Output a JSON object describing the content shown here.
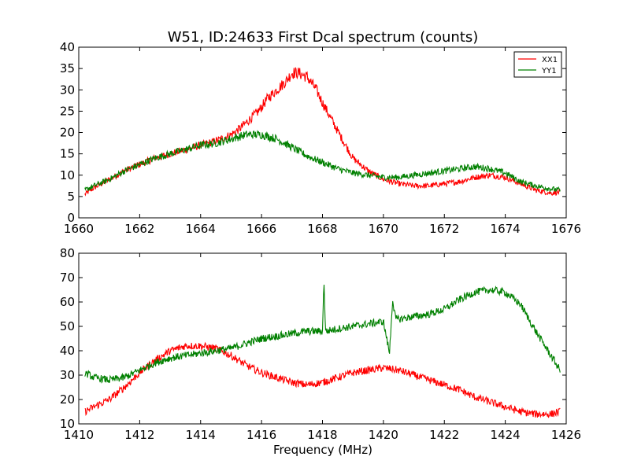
{
  "chart_data": [
    {
      "type": "line",
      "title": "W51, ID:24633 First Dcal spectrum (counts)",
      "xlabel": "",
      "ylabel": "",
      "xlim": [
        1660,
        1676
      ],
      "ylim": [
        0,
        40
      ],
      "xticks": [
        1660,
        1662,
        1664,
        1666,
        1668,
        1670,
        1672,
        1674,
        1676
      ],
      "xtick_labels": [
        "1660",
        "1662",
        "1664",
        "1666",
        "1668",
        "1670",
        "1672",
        "1674",
        "1676"
      ],
      "yticks": [
        0,
        5,
        10,
        15,
        20,
        25,
        30,
        35,
        40
      ],
      "ytick_labels": [
        "0",
        "5",
        "10",
        "15",
        "20",
        "25",
        "30",
        "35",
        "40"
      ],
      "grid": false,
      "legend": "top-right",
      "series": [
        {
          "name": "XX1",
          "color": "#ff0000",
          "x": [
            1660.2,
            1660.5,
            1661.0,
            1661.5,
            1662.0,
            1662.5,
            1663.0,
            1663.5,
            1664.0,
            1664.5,
            1665.0,
            1665.3,
            1665.6,
            1665.9,
            1666.2,
            1666.5,
            1666.8,
            1667.0,
            1667.2,
            1667.5,
            1667.8,
            1668.0,
            1668.3,
            1668.6,
            1669.0,
            1669.5,
            1670.0,
            1670.5,
            1671.0,
            1671.5,
            1672.0,
            1672.5,
            1673.0,
            1673.5,
            1674.0,
            1674.5,
            1675.0,
            1675.5,
            1675.8
          ],
          "values": [
            5.5,
            7,
            9,
            11,
            12.5,
            14,
            15,
            16,
            17,
            18,
            19.5,
            21,
            23,
            25,
            28,
            30,
            32,
            34,
            34,
            33,
            30,
            27,
            23,
            19,
            14,
            11,
            9,
            8,
            7.5,
            7.5,
            8,
            8.5,
            9.5,
            10,
            9.5,
            8,
            6.5,
            5.8,
            6
          ]
        },
        {
          "name": "YY1",
          "color": "#008000",
          "x": [
            1660.2,
            1660.5,
            1661.0,
            1661.5,
            1662.0,
            1662.5,
            1663.0,
            1663.5,
            1664.0,
            1664.5,
            1665.0,
            1665.5,
            1666.0,
            1666.5,
            1667.0,
            1667.5,
            1668.0,
            1668.5,
            1669.0,
            1669.5,
            1670.0,
            1670.5,
            1671.0,
            1671.5,
            1672.0,
            1672.5,
            1673.0,
            1673.5,
            1674.0,
            1674.5,
            1675.0,
            1675.5,
            1675.8
          ],
          "values": [
            6.5,
            7.5,
            9,
            11,
            12.5,
            14,
            15,
            16,
            17,
            17.5,
            18.5,
            19.5,
            19.5,
            18.5,
            16.5,
            14.5,
            13,
            11.5,
            10.5,
            10,
            9.5,
            9.5,
            10,
            10.5,
            11,
            11.5,
            12,
            11.5,
            10.5,
            8.5,
            7.5,
            6.8,
            6.5
          ]
        }
      ]
    },
    {
      "type": "line",
      "title": "",
      "xlabel": "Frequency (MHz)",
      "ylabel": "",
      "xlim": [
        1410,
        1426
      ],
      "ylim": [
        10,
        80
      ],
      "xticks": [
        1410,
        1412,
        1414,
        1416,
        1418,
        1420,
        1422,
        1424,
        1426
      ],
      "xtick_labels": [
        "1410",
        "1412",
        "1414",
        "1416",
        "1418",
        "1420",
        "1422",
        "1424",
        "1426"
      ],
      "yticks": [
        10,
        20,
        30,
        40,
        50,
        60,
        70,
        80
      ],
      "ytick_labels": [
        "10",
        "20",
        "30",
        "40",
        "50",
        "60",
        "70",
        "80"
      ],
      "grid": false,
      "series": [
        {
          "name": "XX1",
          "color": "#ff0000",
          "x": [
            1410.2,
            1410.5,
            1411.0,
            1411.5,
            1412.0,
            1412.5,
            1413.0,
            1413.5,
            1414.0,
            1414.5,
            1415.0,
            1415.5,
            1416.0,
            1416.5,
            1417.0,
            1417.5,
            1418.0,
            1418.5,
            1419.0,
            1419.5,
            1420.0,
            1420.5,
            1421.0,
            1421.5,
            1422.0,
            1422.5,
            1423.0,
            1423.5,
            1424.0,
            1424.5,
            1425.0,
            1425.5,
            1425.8
          ],
          "values": [
            15,
            17,
            20,
            25,
            31,
            36,
            40,
            42,
            42,
            41,
            38,
            34,
            31,
            29,
            27,
            26,
            27,
            29,
            31,
            32,
            33,
            32,
            30,
            28,
            26,
            24,
            21,
            19,
            17,
            15,
            14,
            14,
            15
          ]
        },
        {
          "name": "YY1",
          "color": "#008000",
          "x": [
            1410.2,
            1410.5,
            1411.0,
            1411.5,
            1412.0,
            1412.5,
            1413.0,
            1413.5,
            1414.0,
            1414.5,
            1415.0,
            1415.5,
            1416.0,
            1416.5,
            1417.0,
            1417.5,
            1418.0,
            1418.05,
            1418.1,
            1418.5,
            1419.0,
            1419.5,
            1420.0,
            1420.2,
            1420.3,
            1420.4,
            1420.5,
            1421.0,
            1421.5,
            1422.0,
            1422.5,
            1423.0,
            1423.5,
            1424.0,
            1424.5,
            1425.0,
            1425.5,
            1425.8
          ],
          "values": [
            31,
            29,
            28,
            29,
            32,
            35,
            37,
            38,
            39,
            40,
            41,
            43,
            45,
            46,
            47,
            48,
            48,
            69,
            48,
            49,
            50,
            51,
            52,
            39,
            61,
            53,
            53,
            54,
            55,
            57,
            61,
            64,
            65,
            64,
            59,
            48,
            38,
            32
          ]
        }
      ]
    }
  ]
}
